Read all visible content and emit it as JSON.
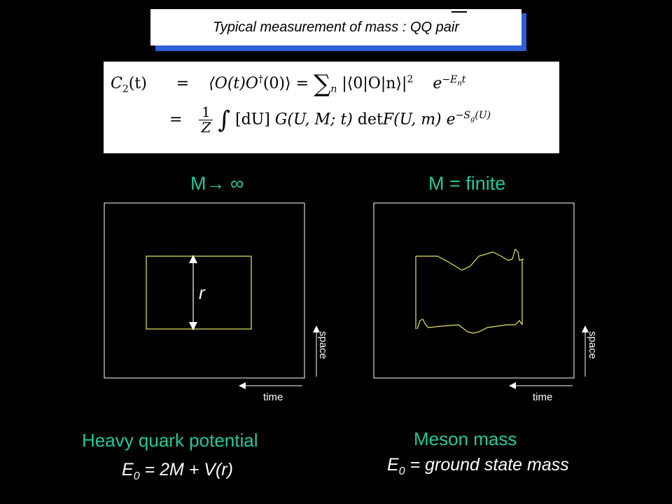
{
  "title": {
    "text": "Typical measurement of mass  : QQ pair"
  },
  "equation": {
    "line1": {
      "lhs": "C",
      "lhs_sub": "2",
      "lhs_arg": "(t)",
      "eq": "=",
      "corr": "⟨O(t)O",
      "dag": "†",
      "corr2": "(0)⟩",
      "eq2": "=",
      "sum": "∑",
      "sum_sub": "n",
      "term": "|⟨0|O|n⟩|",
      "term_sup": "2",
      "exp_base": "e",
      "exp_sup": "−E",
      "exp_sub": "n",
      "exp_tail": "t"
    },
    "line2": {
      "eq": "=",
      "num": "1",
      "den": "Z",
      "int": "∫",
      "meas": "[dU]",
      "G": "G(U, M; t)",
      "det": "det",
      "F": "F(U, m)",
      "exp_base": "e",
      "exp_sup": "−S",
      "exp_sub": "g",
      "exp_tail": "(U)"
    }
  },
  "left_panel": {
    "header": "M→ ∞",
    "r_label": "r",
    "space_label": "space",
    "time_label": "time",
    "caption": "Heavy quark potential",
    "formula_e": "E",
    "formula_sub": "0",
    "formula_rest": " = 2M + V(r)"
  },
  "right_panel": {
    "header": "M = finite",
    "space_label": "space",
    "time_label": "time",
    "caption": "Meson mass",
    "formula_e": "E",
    "formula_sub": "0",
    "formula_rest": " = ground state mass"
  },
  "colors": {
    "accent": "#20c8a0",
    "loop": "#e8e860",
    "title_shadow": "#2f5fd6"
  }
}
